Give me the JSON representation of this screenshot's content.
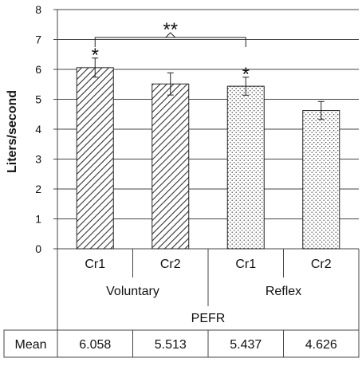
{
  "chart_data": {
    "type": "bar",
    "ylabel": "Liters/second",
    "ylim": [
      0,
      8
    ],
    "yticks": [
      0,
      1,
      2,
      3,
      4,
      5,
      6,
      7,
      8
    ],
    "grid": true,
    "categories": [
      "Cr1",
      "Cr2",
      "Cr1",
      "Cr2"
    ],
    "groups": [
      {
        "label": "Voluntary",
        "categories": [
          "Cr1",
          "Cr2"
        ]
      },
      {
        "label": "Reflex",
        "categories": [
          "Cr1",
          "Cr2"
        ]
      }
    ],
    "group_title": "PEFR",
    "values": [
      6.058,
      5.513,
      5.437,
      4.626
    ],
    "errors": [
      0.32,
      0.37,
      0.3,
      0.3
    ],
    "patterns": [
      "diagonal-hatch",
      "diagonal-hatch",
      "dots",
      "dots"
    ],
    "annotations": {
      "single_star": "*",
      "double_star": "**",
      "single_star_bars": [
        0,
        2
      ],
      "bracket": {
        "from_bar": 0,
        "to_bar": 2
      }
    },
    "table": {
      "row_label": "Mean",
      "cells": [
        "6.058",
        "5.513",
        "5.437",
        "4.626"
      ]
    }
  }
}
